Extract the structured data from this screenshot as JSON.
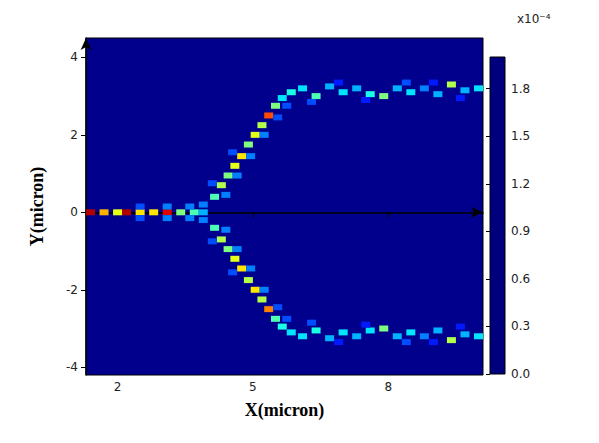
{
  "chart_data": {
    "type": "heatmap",
    "x_label": "X(micron)",
    "y_label": "Y(micron)",
    "xlim": [
      1.3,
      10.1
    ],
    "xticks": [
      2,
      5,
      8
    ],
    "ylim": [
      -4.2,
      4.5
    ],
    "yticks": [
      -4,
      -2,
      0,
      2,
      4
    ],
    "cells": [
      [
        1.4,
        0,
        0.00019
      ],
      [
        1.7,
        0,
        0.00014
      ],
      [
        2.0,
        0,
        0.00012
      ],
      [
        2.2,
        0,
        0.00019
      ],
      [
        2.5,
        0,
        0.00013
      ],
      [
        2.8,
        0,
        0.00013
      ],
      [
        3.1,
        0,
        0.00018
      ],
      [
        3.4,
        0,
        0.0001
      ],
      [
        3.7,
        0,
        9e-05
      ],
      [
        3.9,
        0,
        6e-05
      ],
      [
        2.5,
        0.15,
        4e-05
      ],
      [
        3.1,
        0.15,
        5e-05
      ],
      [
        3.6,
        0.15,
        5e-05
      ],
      [
        3.9,
        0.2,
        5e-05
      ],
      [
        2.5,
        -0.15,
        4e-05
      ],
      [
        3.1,
        -0.15,
        5e-05
      ],
      [
        3.6,
        -0.15,
        5e-05
      ],
      [
        3.9,
        -0.2,
        5e-05
      ],
      [
        4.15,
        0.4,
        9e-05
      ],
      [
        4.3,
        0.7,
        0.00011
      ],
      [
        4.45,
        0.95,
        0.0001
      ],
      [
        4.6,
        1.2,
        0.00012
      ],
      [
        4.75,
        1.45,
        0.00013
      ],
      [
        4.9,
        1.75,
        0.0001
      ],
      [
        5.05,
        2.0,
        0.00012
      ],
      [
        5.2,
        2.25,
        0.00011
      ],
      [
        5.35,
        2.5,
        0.00016
      ],
      [
        5.5,
        2.75,
        0.0001
      ],
      [
        5.65,
        2.95,
        7e-05
      ],
      [
        5.85,
        3.1,
        8e-05
      ],
      [
        4.4,
        0.45,
        5e-05
      ],
      [
        4.65,
        0.95,
        5e-05
      ],
      [
        4.95,
        1.45,
        5e-05
      ],
      [
        5.25,
        2.0,
        5e-05
      ],
      [
        5.55,
        2.45,
        4e-05
      ],
      [
        5.75,
        2.75,
        4e-05
      ],
      [
        4.1,
        0.75,
        4e-05
      ],
      [
        4.55,
        1.55,
        4e-05
      ],
      [
        6.1,
        3.2,
        7e-05
      ],
      [
        6.4,
        3.0,
        9e-05
      ],
      [
        6.7,
        3.25,
        6e-05
      ],
      [
        7.0,
        3.1,
        7e-05
      ],
      [
        7.3,
        3.2,
        6e-05
      ],
      [
        7.6,
        3.05,
        8e-05
      ],
      [
        7.9,
        3.0,
        0.0001
      ],
      [
        8.2,
        3.2,
        6e-05
      ],
      [
        8.5,
        3.1,
        7e-05
      ],
      [
        8.8,
        3.2,
        5e-05
      ],
      [
        9.1,
        3.05,
        6e-05
      ],
      [
        9.4,
        3.3,
        0.00011
      ],
      [
        9.7,
        3.15,
        6e-05
      ],
      [
        10.0,
        3.2,
        7e-05
      ],
      [
        6.3,
        2.85,
        4e-05
      ],
      [
        6.9,
        3.35,
        3e-05
      ],
      [
        7.5,
        2.9,
        3e-05
      ],
      [
        8.4,
        3.35,
        4e-05
      ],
      [
        9.0,
        3.35,
        3e-05
      ],
      [
        9.6,
        2.95,
        3e-05
      ],
      [
        4.15,
        -0.4,
        9e-05
      ],
      [
        4.3,
        -0.7,
        0.00011
      ],
      [
        4.45,
        -0.95,
        0.0001
      ],
      [
        4.6,
        -1.2,
        0.00012
      ],
      [
        4.75,
        -1.45,
        0.00013
      ],
      [
        4.9,
        -1.75,
        0.00011
      ],
      [
        5.05,
        -2.0,
        0.00013
      ],
      [
        5.2,
        -2.25,
        0.00011
      ],
      [
        5.35,
        -2.5,
        0.00015
      ],
      [
        5.5,
        -2.75,
        9e-05
      ],
      [
        5.65,
        -2.95,
        8e-05
      ],
      [
        5.85,
        -3.1,
        7e-05
      ],
      [
        4.4,
        -0.45,
        5e-05
      ],
      [
        4.65,
        -0.95,
        5e-05
      ],
      [
        4.95,
        -1.45,
        5e-05
      ],
      [
        5.25,
        -2.0,
        5e-05
      ],
      [
        5.55,
        -2.45,
        4e-05
      ],
      [
        5.75,
        -2.75,
        4e-05
      ],
      [
        4.1,
        -0.75,
        4e-05
      ],
      [
        4.55,
        -1.55,
        4e-05
      ],
      [
        6.1,
        -3.2,
        7e-05
      ],
      [
        6.4,
        -3.05,
        8e-05
      ],
      [
        6.7,
        -3.25,
        6e-05
      ],
      [
        7.0,
        -3.1,
        7e-05
      ],
      [
        7.3,
        -3.2,
        6e-05
      ],
      [
        7.6,
        -3.05,
        7e-05
      ],
      [
        7.9,
        -3.0,
        0.0001
      ],
      [
        8.2,
        -3.2,
        6e-05
      ],
      [
        8.5,
        -3.1,
        7e-05
      ],
      [
        8.8,
        -3.2,
        5e-05
      ],
      [
        9.1,
        -3.05,
        6e-05
      ],
      [
        9.4,
        -3.3,
        0.00011
      ],
      [
        9.7,
        -3.15,
        6e-05
      ],
      [
        10.0,
        -3.2,
        7e-05
      ],
      [
        6.3,
        -2.85,
        4e-05
      ],
      [
        6.9,
        -3.35,
        3e-05
      ],
      [
        7.5,
        -2.9,
        3e-05
      ],
      [
        8.4,
        -3.35,
        4e-05
      ],
      [
        9.0,
        -3.35,
        3e-05
      ],
      [
        9.6,
        -2.95,
        3e-05
      ]
    ],
    "colorbar": {
      "title": "x10⁻⁴",
      "range": [
        0,
        0.0002
      ],
      "ticks": [
        {
          "value": 0,
          "label": "0.0"
        },
        {
          "value": 3e-05,
          "label": "0.3"
        },
        {
          "value": 6e-05,
          "label": "0.6"
        },
        {
          "value": 9e-05,
          "label": "0.9"
        },
        {
          "value": 0.00012,
          "label": "1.2"
        },
        {
          "value": 0.00015,
          "label": "1.5"
        },
        {
          "value": 0.00018,
          "label": "1.8"
        }
      ]
    }
  }
}
